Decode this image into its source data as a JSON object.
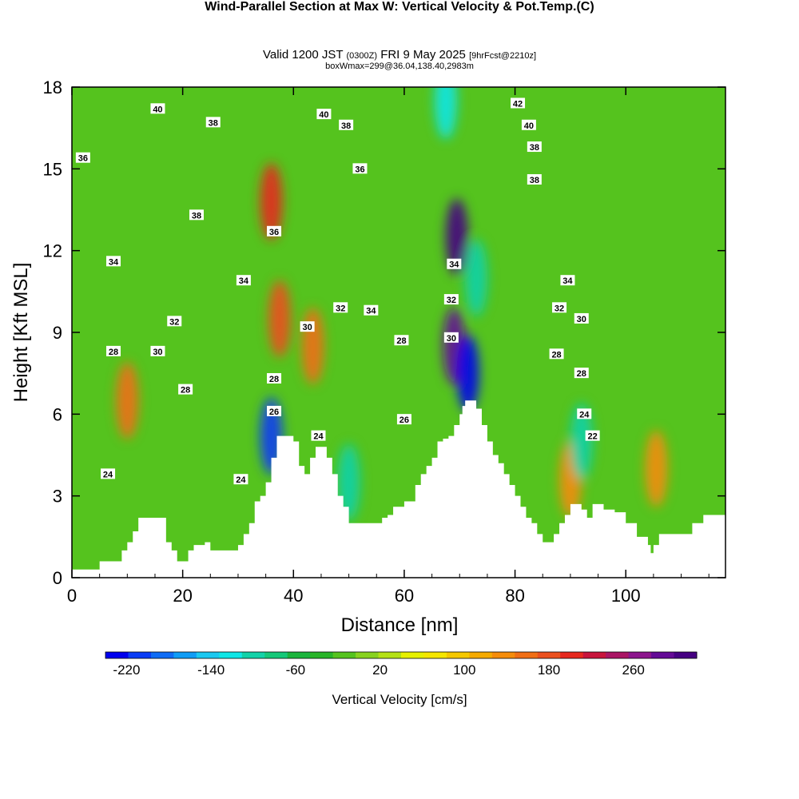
{
  "header": {
    "title": "Wind-Parallel Section at Max W: Vertical Velocity & Pot.Temp.",
    "copyright": "(C)",
    "subtitle_main": "Valid 1200 JST",
    "subtitle_utc": "(0300Z)",
    "subtitle_date": "FRI 9 May 2025",
    "subtitle_fcst": "[9hrFcst@2210z]",
    "info": "boxWmax=299@36.04,138.40,2983m"
  },
  "chart_data": {
    "type": "heatmap",
    "xlabel": "Distance [nm]",
    "ylabel": "Height [Kft MSL]",
    "xlim": [
      0,
      118
    ],
    "ylim": [
      0,
      18
    ],
    "xticks": [
      0,
      20,
      40,
      60,
      80,
      100
    ],
    "yticks": [
      0,
      3,
      6,
      9,
      12,
      15,
      18
    ],
    "grid": false,
    "colorbar": {
      "title": "Vertical Velocity [cm/s]",
      "min": -240,
      "max": 320,
      "step": 20,
      "tick_values": [
        -220,
        -140,
        -60,
        20,
        100,
        180,
        260
      ],
      "tick_labels": [
        "-220",
        "-140",
        "-60",
        "20",
        "100",
        "180",
        "260"
      ],
      "colors": [
        "#0000ee",
        "#0a3cf5",
        "#0f6cf5",
        "#0f9cf5",
        "#1ac8f0",
        "#10e6e6",
        "#12d2a8",
        "#14c878",
        "#1ab43c",
        "#28b428",
        "#55c31e",
        "#87d21e",
        "#b4e114",
        "#e6f000",
        "#f5e600",
        "#f5c800",
        "#f5aa00",
        "#f58c0a",
        "#f06e14",
        "#eb501e",
        "#e6281e",
        "#c8143c",
        "#aa1464",
        "#8c148c",
        "#640a96",
        "#460082"
      ],
      "orientation": "horizontal"
    },
    "terrain_profile": {
      "x": [
        0,
        3,
        5,
        8,
        9,
        10,
        11,
        12,
        14,
        15,
        17,
        18,
        19,
        20,
        21,
        22,
        24,
        25,
        27,
        30,
        31,
        32,
        33,
        34,
        35,
        36,
        37,
        38,
        39,
        40,
        41,
        42,
        43,
        44,
        45,
        46,
        47,
        48,
        49,
        50,
        52,
        54,
        56,
        57,
        58,
        60,
        62,
        63,
        64,
        65,
        66,
        67,
        68,
        69,
        70,
        70.5,
        71,
        72,
        73,
        74,
        75,
        76,
        77,
        78,
        79,
        80,
        81,
        82,
        83,
        84,
        85,
        86,
        87,
        88,
        89,
        90,
        91,
        92,
        93,
        94,
        96,
        98,
        100,
        102,
        104,
        104.5,
        105,
        106,
        108,
        110,
        112,
        114,
        116,
        118
      ],
      "height": [
        0.3,
        0.3,
        0.6,
        0.6,
        1.0,
        1.3,
        1.7,
        2.2,
        2.2,
        2.2,
        1.3,
        1.0,
        0.6,
        0.6,
        1.0,
        1.2,
        1.3,
        1.0,
        1.0,
        1.2,
        1.6,
        2.0,
        2.8,
        3.0,
        3.5,
        4.4,
        5.2,
        5.2,
        5.2,
        5.0,
        4.1,
        3.8,
        4.4,
        4.8,
        4.8,
        4.4,
        3.8,
        3.0,
        2.6,
        2.0,
        2.0,
        2.0,
        2.2,
        2.3,
        2.6,
        2.8,
        3.4,
        3.8,
        4.1,
        4.4,
        5.0,
        5.1,
        5.2,
        5.6,
        6.0,
        6.3,
        6.5,
        6.5,
        6.2,
        5.6,
        5.0,
        4.5,
        4.2,
        3.8,
        3.4,
        3.0,
        2.6,
        2.2,
        2.0,
        1.6,
        1.3,
        1.3,
        1.6,
        2.0,
        2.3,
        2.7,
        2.7,
        2.5,
        2.2,
        2.7,
        2.5,
        2.4,
        2.0,
        1.5,
        1.2,
        0.9,
        1.2,
        1.6,
        1.6,
        1.6,
        2.0,
        2.3,
        2.3,
        2.0
      ],
      "above_fill": "#ffffff"
    },
    "vertical_velocity_features": [
      {
        "x": 10,
        "z": 6.5,
        "value": 130
      },
      {
        "x": 36,
        "z": 13.8,
        "value": 170
      },
      {
        "x": 37.5,
        "z": 9.5,
        "value": 150
      },
      {
        "x": 36,
        "z": 5.2,
        "value": -220
      },
      {
        "x": 43.5,
        "z": 8.5,
        "value": 120
      },
      {
        "x": 50,
        "z": 3.5,
        "value": -120
      },
      {
        "x": 69.5,
        "z": 12.5,
        "value": 260
      },
      {
        "x": 69,
        "z": 8.5,
        "value": 240
      },
      {
        "x": 67.5,
        "z": 17.5,
        "value": -140
      },
      {
        "x": 71.5,
        "z": 7.5,
        "value": -240
      },
      {
        "x": 73,
        "z": 11.0,
        "value": -120
      },
      {
        "x": 90,
        "z": 3.6,
        "value": 110
      },
      {
        "x": 92,
        "z": 5.0,
        "value": -120
      },
      {
        "x": 105.5,
        "z": 4.0,
        "value": 100
      }
    ],
    "contour_field": "Potential Temperature",
    "contour_labels": [
      {
        "x": 15.5,
        "z": 17.2,
        "text": "40"
      },
      {
        "x": 25.5,
        "z": 16.7,
        "text": "38"
      },
      {
        "x": 45.5,
        "z": 17.0,
        "text": "40"
      },
      {
        "x": 49.5,
        "z": 16.6,
        "text": "38"
      },
      {
        "x": 80.5,
        "z": 17.4,
        "text": "42"
      },
      {
        "x": 82.5,
        "z": 16.6,
        "text": "40"
      },
      {
        "x": 83.5,
        "z": 15.8,
        "text": "38"
      },
      {
        "x": 83.5,
        "z": 14.6,
        "text": "38"
      },
      {
        "x": 2.0,
        "z": 15.4,
        "text": "36"
      },
      {
        "x": 52.0,
        "z": 15.0,
        "text": "36"
      },
      {
        "x": 22.5,
        "z": 13.3,
        "text": "38"
      },
      {
        "x": 36.5,
        "z": 12.7,
        "text": "36"
      },
      {
        "x": 7.5,
        "z": 11.6,
        "text": "34"
      },
      {
        "x": 31.0,
        "z": 10.9,
        "text": "34"
      },
      {
        "x": 69.0,
        "z": 11.5,
        "text": "34"
      },
      {
        "x": 68.5,
        "z": 10.2,
        "text": "32"
      },
      {
        "x": 89.5,
        "z": 10.9,
        "text": "34"
      },
      {
        "x": 48.5,
        "z": 9.9,
        "text": "32"
      },
      {
        "x": 54.0,
        "z": 9.8,
        "text": "34"
      },
      {
        "x": 88.0,
        "z": 9.9,
        "text": "32"
      },
      {
        "x": 18.5,
        "z": 9.4,
        "text": "32"
      },
      {
        "x": 42.5,
        "z": 9.2,
        "text": "30"
      },
      {
        "x": 68.5,
        "z": 8.8,
        "text": "30"
      },
      {
        "x": 92.0,
        "z": 9.5,
        "text": "30"
      },
      {
        "x": 7.5,
        "z": 8.3,
        "text": "28"
      },
      {
        "x": 15.5,
        "z": 8.3,
        "text": "30"
      },
      {
        "x": 59.5,
        "z": 8.7,
        "text": "28"
      },
      {
        "x": 87.5,
        "z": 8.2,
        "text": "28"
      },
      {
        "x": 20.5,
        "z": 6.9,
        "text": "28"
      },
      {
        "x": 36.5,
        "z": 7.3,
        "text": "28"
      },
      {
        "x": 92.0,
        "z": 7.5,
        "text": "28"
      },
      {
        "x": 36.5,
        "z": 6.1,
        "text": "26"
      },
      {
        "x": 60.0,
        "z": 5.8,
        "text": "26"
      },
      {
        "x": 92.5,
        "z": 6.0,
        "text": "24"
      },
      {
        "x": 44.5,
        "z": 5.2,
        "text": "24"
      },
      {
        "x": 94.0,
        "z": 5.2,
        "text": "22"
      },
      {
        "x": 6.5,
        "z": 3.8,
        "text": "24"
      },
      {
        "x": 30.5,
        "z": 3.6,
        "text": "24"
      }
    ]
  }
}
